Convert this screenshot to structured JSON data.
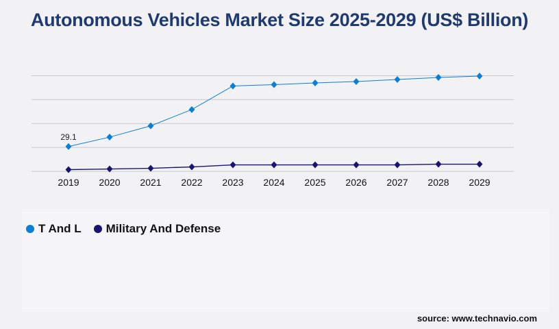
{
  "chart_data": {
    "type": "line",
    "title": "Autonomous Vehicles Market Size 2025-2029 (US$ Billion)",
    "categories": [
      "2019",
      "2020",
      "2021",
      "2022",
      "2023",
      "2024",
      "2025",
      "2026",
      "2027",
      "2028",
      "2029"
    ],
    "series": [
      {
        "name": "T And L",
        "color": "#0a7fd4",
        "values": [
          29.1,
          40.1,
          53.3,
          72.4,
          100.0,
          101.6,
          103.6,
          105.2,
          107.6,
          110.0,
          111.6
        ]
      },
      {
        "name": "Military And Defense",
        "color": "#1a1470",
        "values": [
          2.0,
          2.8,
          3.6,
          5.2,
          7.6,
          7.6,
          7.6,
          7.6,
          7.6,
          8.4,
          8.4
        ]
      }
    ],
    "data_labels": [
      {
        "series": 0,
        "index": 0,
        "text": "29.1"
      }
    ],
    "ylim": [
      0,
      112
    ],
    "grid": true,
    "legend_placement": "bottom-left"
  },
  "source": "source: www.technavio.com"
}
